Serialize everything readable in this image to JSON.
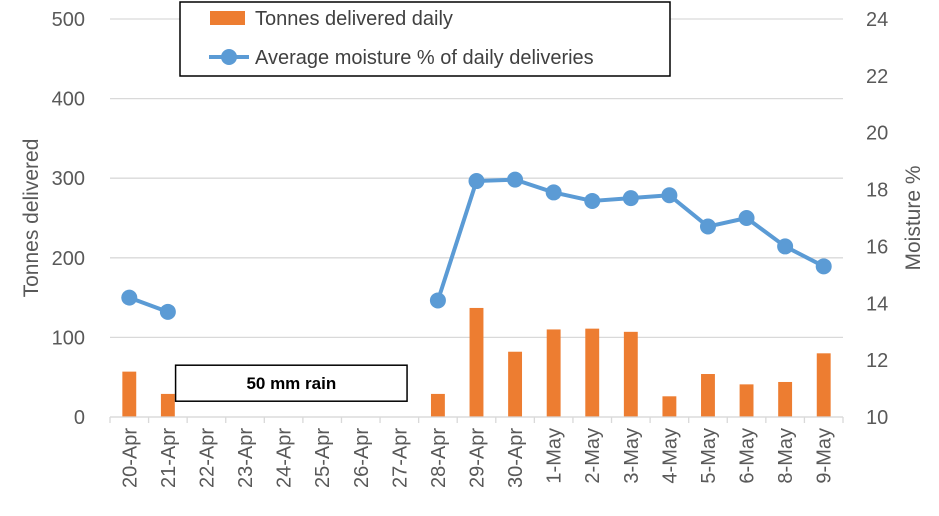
{
  "chart_data": {
    "type": "bar",
    "categories": [
      "20-Apr",
      "21-Apr",
      "22-Apr",
      "23-Apr",
      "24-Apr",
      "25-Apr",
      "26-Apr",
      "27-Apr",
      "28-Apr",
      "29-Apr",
      "30-Apr",
      "1-May",
      "2-May",
      "3-May",
      "4-May",
      "5-May",
      "6-May",
      "8-May",
      "9-May"
    ],
    "series": [
      {
        "name": "Tonnes delivered daily",
        "type": "bar",
        "axis": "left",
        "color": "#ED7D31",
        "values": [
          57,
          29,
          null,
          null,
          null,
          null,
          null,
          null,
          29,
          137,
          82,
          110,
          111,
          107,
          26,
          54,
          41,
          44,
          80
        ]
      },
      {
        "name": "Average moisture % of daily deliveries",
        "type": "line",
        "axis": "right",
        "color": "#5B9BD5",
        "values": [
          14.2,
          13.7,
          null,
          null,
          null,
          null,
          null,
          null,
          14.1,
          18.3,
          18.35,
          17.9,
          17.6,
          17.7,
          17.8,
          16.7,
          17.0,
          16.0,
          15.3
        ]
      }
    ],
    "ylabel": "Tonnes delivered",
    "ylabel_right": "Moisture %",
    "ylim": [
      0,
      500
    ],
    "yticks": [
      0,
      100,
      200,
      300,
      400,
      500
    ],
    "ylim_right": [
      10,
      24
    ],
    "yticks_right": [
      10,
      12,
      14,
      16,
      18,
      20,
      22,
      24
    ],
    "grid": true,
    "legend_position": "top-center",
    "annotation": {
      "text": "50 mm rain",
      "from_category": "21-Apr",
      "to_category": "27-Apr",
      "value": 50
    }
  }
}
